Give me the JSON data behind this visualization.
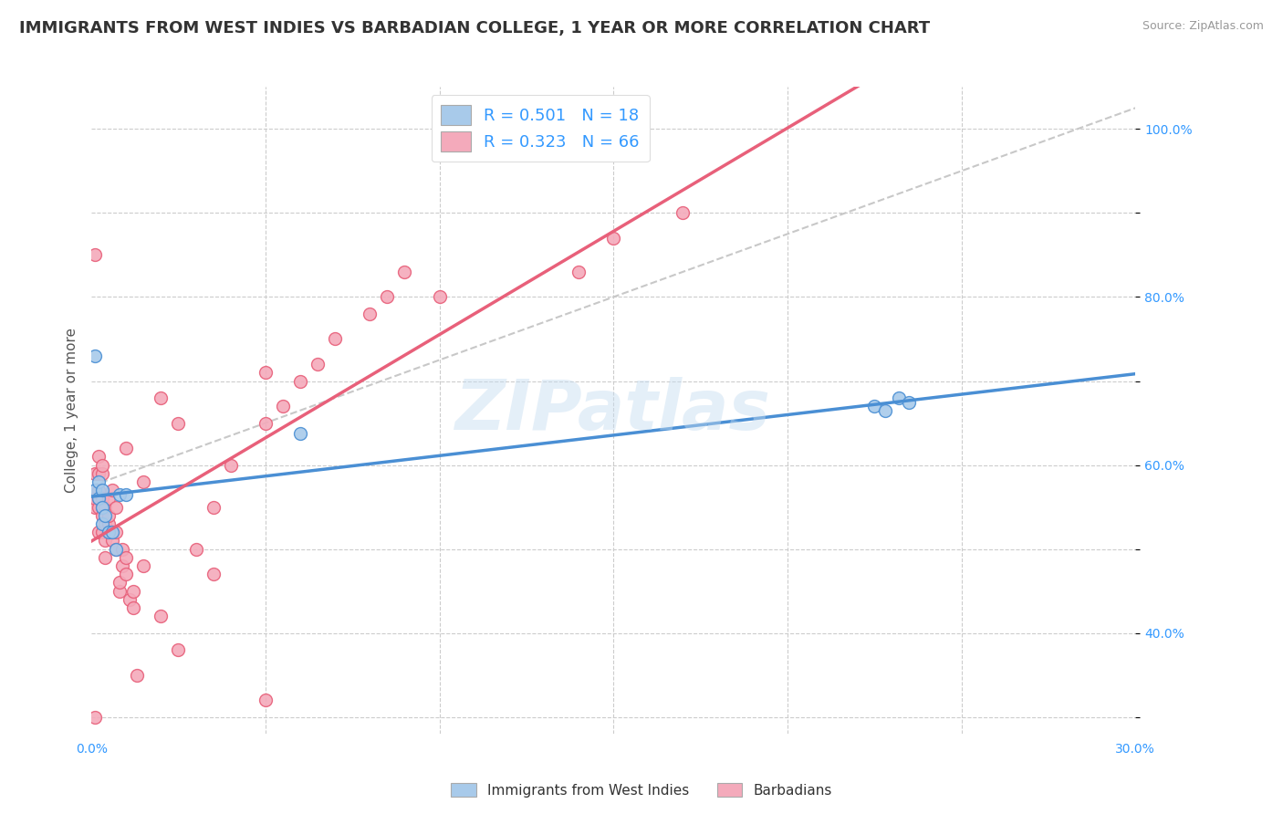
{
  "title": "IMMIGRANTS FROM WEST INDIES VS BARBADIAN COLLEGE, 1 YEAR OR MORE CORRELATION CHART",
  "source": "Source: ZipAtlas.com",
  "ylabel": "College, 1 year or more",
  "xlim": [
    0.0,
    0.3
  ],
  "ylim": [
    0.28,
    1.05
  ],
  "color_blue": "#A8CAEA",
  "color_pink": "#F4AABB",
  "color_blue_line": "#4A8FD4",
  "color_pink_line": "#E8607A",
  "color_dashed": "#C8C8C8",
  "watermark": "ZIPatlas",
  "blue_x": [
    0.001,
    0.001,
    0.002,
    0.002,
    0.003,
    0.003,
    0.003,
    0.004,
    0.005,
    0.006,
    0.007,
    0.008,
    0.01,
    0.06,
    0.225,
    0.228,
    0.232,
    0.235
  ],
  "blue_y": [
    0.73,
    0.57,
    0.58,
    0.56,
    0.57,
    0.55,
    0.53,
    0.54,
    0.52,
    0.52,
    0.5,
    0.565,
    0.565,
    0.638,
    0.67,
    0.665,
    0.68,
    0.675
  ],
  "pink_x": [
    0.001,
    0.001,
    0.001,
    0.001,
    0.002,
    0.002,
    0.002,
    0.002,
    0.002,
    0.002,
    0.003,
    0.003,
    0.003,
    0.003,
    0.003,
    0.003,
    0.004,
    0.004,
    0.004,
    0.004,
    0.005,
    0.005,
    0.005,
    0.005,
    0.006,
    0.006,
    0.006,
    0.007,
    0.007,
    0.007,
    0.008,
    0.008,
    0.009,
    0.009,
    0.01,
    0.01,
    0.011,
    0.012,
    0.013,
    0.015,
    0.02,
    0.025,
    0.03,
    0.035,
    0.04,
    0.05,
    0.055,
    0.06,
    0.065,
    0.07,
    0.08,
    0.085,
    0.09,
    0.01,
    0.015,
    0.02,
    0.025,
    0.05,
    0.1,
    0.14,
    0.15,
    0.17,
    0.012,
    0.035,
    0.05,
    0.001
  ],
  "pink_y": [
    0.3,
    0.55,
    0.56,
    0.59,
    0.52,
    0.55,
    0.56,
    0.57,
    0.59,
    0.61,
    0.52,
    0.54,
    0.55,
    0.56,
    0.59,
    0.6,
    0.49,
    0.51,
    0.53,
    0.55,
    0.52,
    0.53,
    0.54,
    0.56,
    0.51,
    0.52,
    0.57,
    0.5,
    0.52,
    0.55,
    0.45,
    0.46,
    0.48,
    0.5,
    0.47,
    0.49,
    0.44,
    0.45,
    0.35,
    0.48,
    0.42,
    0.38,
    0.5,
    0.55,
    0.6,
    0.65,
    0.67,
    0.7,
    0.72,
    0.75,
    0.78,
    0.8,
    0.83,
    0.62,
    0.58,
    0.68,
    0.65,
    0.71,
    0.8,
    0.83,
    0.87,
    0.9,
    0.43,
    0.47,
    0.32,
    0.85
  ],
  "title_fontsize": 13,
  "axis_label_fontsize": 11,
  "tick_fontsize": 10,
  "legend_fontsize": 13
}
